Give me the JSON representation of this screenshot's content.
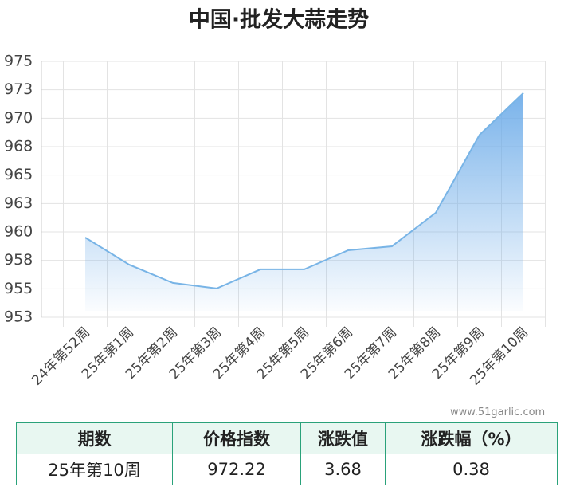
{
  "chart_data": {
    "type": "line",
    "title": "中国·批发大蒜走势",
    "categories": [
      "24年第52周",
      "25年第1周",
      "25年第2周",
      "25年第3周",
      "25年第4周",
      "25年第5周",
      "25年第6周",
      "25年第7周",
      "25年第8周",
      "25年第9周",
      "25年第10周"
    ],
    "values": [
      959.51,
      957.13,
      955.52,
      955.03,
      956.71,
      956.71,
      958.39,
      958.74,
      961.69,
      968.54,
      972.22
    ],
    "color": "#78b4e6",
    "ylim": [
      952.5,
      975
    ],
    "yticks": [
      {
        "value": 952.5,
        "label": "953"
      },
      955,
      {
        "value": 957.5,
        "label": "958"
      },
      960,
      {
        "value": 962.5,
        "label": "963"
      },
      965,
      {
        "value": 967.5,
        "label": "968"
      },
      970,
      {
        "value": 972.5,
        "label": "973"
      },
      975
    ],
    "grid": true
  },
  "watermark": "www.51garlic.com",
  "table": {
    "header": [
      "期数",
      "价格指数",
      "涨跌值",
      "涨跌幅（%）"
    ],
    "rows": [
      [
        "25年第10周",
        "972.22",
        "3.68",
        "0.38"
      ]
    ]
  }
}
